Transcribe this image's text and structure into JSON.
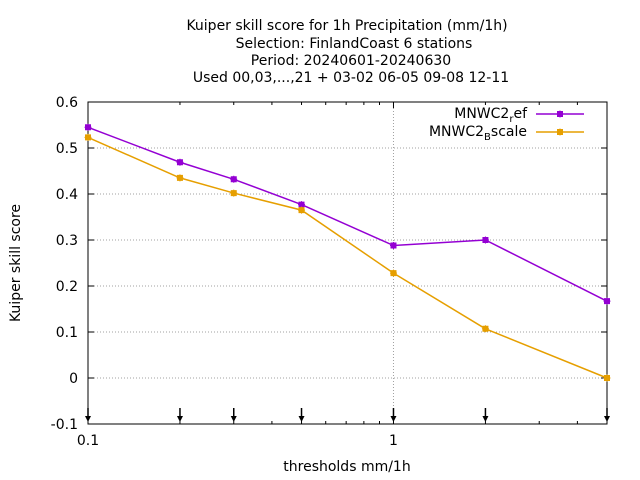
{
  "chart_data": {
    "type": "line",
    "title_lines": [
      "Kuiper skill score  for 1h Precipitation (mm/1h)",
      "Selection: FinlandCoast      6 stations",
      "Period: 20240601-20240630",
      "Used 00,03,...,21 + 03-02 06-05 09-08 12-11"
    ],
    "xlabel": "thresholds mm/1h",
    "ylabel": "Kuiper skill score",
    "x_scale": "log",
    "xlim": [
      0.1,
      5
    ],
    "ylim": [
      -0.1,
      0.6
    ],
    "x_tick_labels": [
      "0.1",
      "1"
    ],
    "y_ticks": [
      -0.1,
      0,
      0.1,
      0.2,
      0.3,
      0.4,
      0.5,
      0.6
    ],
    "y_tick_labels": [
      "-0.1",
      "0",
      "0.1",
      "0.2",
      "0.3",
      "0.4",
      "0.5",
      "0.6"
    ],
    "grid": true,
    "legend_position": "top-right",
    "threshold_markers": [
      0.1,
      0.2,
      0.3,
      0.5,
      1,
      2,
      5
    ],
    "x": [
      0.1,
      0.2,
      0.3,
      0.5,
      1,
      2,
      5
    ],
    "series": [
      {
        "name_main": "MNWC2",
        "name_sub": "r",
        "name_tail": "ef",
        "color": "#9400d3",
        "values": [
          0.545,
          0.469,
          0.432,
          0.377,
          0.288,
          0.3,
          0.167
        ]
      },
      {
        "name_main": "MNWC2",
        "name_sub": "B",
        "name_tail": "scale",
        "color": "#e69f00",
        "values": [
          0.523,
          0.435,
          0.402,
          0.365,
          0.228,
          0.107,
          0.0
        ]
      }
    ]
  }
}
